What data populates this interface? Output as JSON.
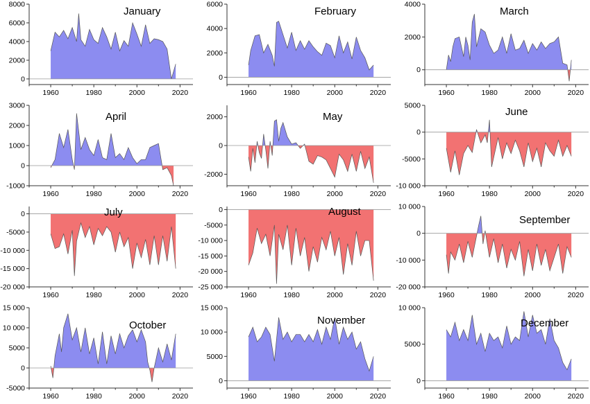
{
  "colors": {
    "positive": "#8c8cf0",
    "negative": "#f27272",
    "outline": "#555555",
    "axis": "#333333",
    "zero_line": "#999999"
  },
  "x_ticks": [
    1960,
    1980,
    2000,
    2020
  ],
  "chart_data": [
    {
      "type": "area",
      "title": "January",
      "xlim": [
        1950,
        2026
      ],
      "ylim": [
        -600,
        8000
      ],
      "yticks": [
        0,
        2000,
        4000,
        6000,
        8000
      ],
      "ytick_labels": [
        "0",
        "2000",
        "4000",
        "6000",
        "8000"
      ],
      "x": [
        1960,
        1962,
        1964,
        1966,
        1968,
        1970,
        1972,
        1973,
        1974,
        1976,
        1978,
        1980,
        1982,
        1984,
        1986,
        1988,
        1990,
        1992,
        1994,
        1996,
        1998,
        2000,
        2002,
        2004,
        2006,
        2008,
        2010,
        2012,
        2014,
        2016,
        2017,
        2018
      ],
      "y": [
        3000,
        5000,
        4500,
        5200,
        4300,
        5500,
        4000,
        7000,
        4200,
        3500,
        5300,
        4200,
        3800,
        5500,
        4500,
        3200,
        5000,
        3000,
        4100,
        3500,
        6000,
        4800,
        3500,
        5800,
        3800,
        4300,
        4200,
        4000,
        3200,
        0,
        800,
        1600
      ]
    },
    {
      "type": "area",
      "title": "February",
      "xlim": [
        1950,
        2026
      ],
      "ylim": [
        -600,
        6000
      ],
      "yticks": [
        0,
        2000,
        4000,
        6000
      ],
      "ytick_labels": [
        "0",
        "2000",
        "4000",
        "6000"
      ],
      "x": [
        1960,
        1961,
        1963,
        1965,
        1967,
        1969,
        1971,
        1972,
        1973,
        1974,
        1976,
        1978,
        1980,
        1982,
        1984,
        1986,
        1988,
        1990,
        1992,
        1994,
        1996,
        1998,
        2000,
        2002,
        2004,
        2006,
        2008,
        2010,
        2012,
        2014,
        2016,
        2018
      ],
      "y": [
        1000,
        2200,
        3400,
        3500,
        2000,
        2700,
        1800,
        900,
        4500,
        4600,
        3500,
        2400,
        3700,
        2200,
        3000,
        2300,
        3000,
        2500,
        2100,
        1800,
        2800,
        2600,
        1600,
        3400,
        2000,
        2900,
        1500,
        3300,
        2200,
        1600,
        600,
        1000
      ]
    },
    {
      "type": "area",
      "title": "March",
      "xlim": [
        1950,
        2026
      ],
      "ylim": [
        -900,
        4000
      ],
      "yticks": [
        0,
        2000,
        4000
      ],
      "ytick_labels": [
        "0",
        "2000",
        "4000"
      ],
      "x": [
        1960,
        1961,
        1962,
        1963,
        1964,
        1966,
        1968,
        1969,
        1970,
        1971,
        1972,
        1973,
        1974,
        1976,
        1978,
        1980,
        1982,
        1984,
        1986,
        1988,
        1990,
        1992,
        1994,
        1996,
        1998,
        2000,
        2002,
        2004,
        2006,
        2008,
        2010,
        2012,
        2014,
        2016,
        2017,
        2018
      ],
      "y": [
        0,
        900,
        500,
        1400,
        1900,
        2000,
        800,
        2000,
        1500,
        600,
        2900,
        3400,
        1400,
        2500,
        2300,
        1500,
        1000,
        1200,
        2000,
        1000,
        2200,
        1200,
        1300,
        1800,
        1000,
        1600,
        1200,
        1700,
        1300,
        1600,
        1700,
        2000,
        400,
        300,
        -700,
        600
      ]
    },
    {
      "type": "area",
      "title": "April",
      "xlim": [
        1950,
        2026
      ],
      "ylim": [
        -1000,
        3000
      ],
      "yticks": [
        -1000,
        0,
        1000,
        2000,
        3000
      ],
      "ytick_labels": [
        "-1000",
        "0",
        "1000",
        "2000",
        "3000"
      ],
      "x": [
        1960,
        1962,
        1964,
        1966,
        1968,
        1970,
        1971,
        1972,
        1974,
        1976,
        1978,
        1980,
        1982,
        1984,
        1986,
        1988,
        1990,
        1992,
        1994,
        1996,
        1998,
        2000,
        2002,
        2004,
        2006,
        2008,
        2010,
        2012,
        2014,
        2016,
        2017
      ],
      "y": [
        -100,
        300,
        1600,
        900,
        1800,
        300,
        -200,
        2600,
        800,
        1400,
        800,
        500,
        1300,
        400,
        300,
        1600,
        400,
        600,
        300,
        900,
        400,
        100,
        300,
        300,
        900,
        1000,
        1100,
        -200,
        -100,
        -500,
        -1000
      ]
    },
    {
      "type": "area",
      "title": "May",
      "xlim": [
        1950,
        2026
      ],
      "ylim": [
        -2800,
        2800
      ],
      "yticks": [
        -2000,
        0,
        2000
      ],
      "ytick_labels": [
        "-2000",
        "0",
        "2000"
      ],
      "x": [
        1960,
        1961,
        1962,
        1963,
        1964,
        1965,
        1966,
        1967,
        1968,
        1969,
        1970,
        1971,
        1972,
        1973,
        1974,
        1975,
        1976,
        1978,
        1980,
        1982,
        1984,
        1986,
        1988,
        1990,
        1992,
        1994,
        1996,
        1998,
        2000,
        2002,
        2004,
        2006,
        2008,
        2010,
        2012,
        2014,
        2016,
        2018
      ],
      "y": [
        -800,
        -1800,
        -200,
        -1200,
        300,
        -500,
        -900,
        800,
        -300,
        -1600,
        300,
        -700,
        1700,
        1800,
        300,
        1200,
        1600,
        600,
        100,
        200,
        -200,
        100,
        -1100,
        -1300,
        -700,
        -800,
        -1000,
        -1600,
        -2200,
        -600,
        -1000,
        -1800,
        -600,
        -1800,
        -400,
        -1600,
        -800,
        -2600
      ]
    },
    {
      "type": "area",
      "title": "June",
      "xlim": [
        1950,
        2026
      ],
      "ylim": [
        -10000,
        5000
      ],
      "yticks": [
        -10000,
        -5000,
        0,
        5000
      ],
      "ytick_labels": [
        "-10 000",
        "-5000",
        "0",
        "5000"
      ],
      "x": [
        1960,
        1962,
        1964,
        1966,
        1968,
        1970,
        1972,
        1974,
        1976,
        1978,
        1979,
        1980,
        1981,
        1984,
        1986,
        1988,
        1990,
        1992,
        1994,
        1996,
        1998,
        2000,
        2002,
        2004,
        2006,
        2008,
        2010,
        2012,
        2014,
        2016,
        2018
      ],
      "y": [
        -3000,
        -7500,
        -3500,
        -8000,
        -4000,
        -2500,
        -3800,
        500,
        -2000,
        -500,
        -2000,
        2300,
        -6500,
        -1000,
        -5000,
        -2000,
        -4000,
        -1500,
        -3500,
        -6500,
        -2000,
        -5500,
        -3000,
        -6500,
        -2000,
        -3500,
        -4500,
        -1500,
        -4500,
        -2500,
        -4500
      ]
    },
    {
      "type": "area",
      "title": "July",
      "xlim": [
        1950,
        2026
      ],
      "ylim": [
        -20000,
        2000
      ],
      "yticks": [
        -20000,
        -15000,
        -10000,
        -5000,
        0
      ],
      "ytick_labels": [
        "-20 000",
        "-15 000",
        "-10 000",
        "-5000",
        "0"
      ],
      "x": [
        1960,
        1962,
        1964,
        1966,
        1968,
        1970,
        1971,
        1972,
        1974,
        1976,
        1978,
        1980,
        1982,
        1984,
        1986,
        1988,
        1990,
        1992,
        1994,
        1996,
        1998,
        2000,
        2002,
        2004,
        2006,
        2008,
        2010,
        2012,
        2014,
        2016,
        2018
      ],
      "y": [
        -5500,
        -9500,
        -9000,
        -5500,
        -11000,
        -4500,
        -17000,
        -7500,
        -2500,
        -6500,
        -3500,
        -8500,
        -4000,
        -6000,
        -3500,
        -5000,
        -10500,
        -5000,
        -9000,
        -6500,
        -15000,
        -8000,
        -12000,
        -7000,
        -14000,
        -6000,
        -14000,
        -6000,
        -13000,
        -3500,
        -15000
      ]
    },
    {
      "type": "area",
      "title": "August",
      "xlim": [
        1950,
        2026
      ],
      "ylim": [
        -25000,
        1000
      ],
      "yticks": [
        -25000,
        -20000,
        -15000,
        -10000,
        -5000,
        0
      ],
      "ytick_labels": [
        "-25 000",
        "-20 000",
        "-15 000",
        "-10 000",
        "-5000",
        "0"
      ],
      "x": [
        1960,
        1962,
        1964,
        1966,
        1968,
        1970,
        1972,
        1973,
        1974,
        1976,
        1978,
        1980,
        1982,
        1984,
        1986,
        1988,
        1990,
        1992,
        1994,
        1996,
        1998,
        2000,
        2002,
        2004,
        2006,
        2008,
        2010,
        2012,
        2014,
        2016,
        2018
      ],
      "y": [
        -18000,
        -14000,
        -6000,
        -11000,
        -8000,
        -15000,
        -5000,
        -24000,
        -8000,
        -13000,
        -5000,
        -18000,
        -6000,
        -15000,
        -9000,
        -20000,
        -12000,
        -17000,
        -9000,
        -13000,
        -7000,
        -15000,
        -9000,
        -21000,
        -11000,
        -18000,
        -7000,
        -15000,
        -10000,
        -10000,
        -23000
      ]
    },
    {
      "type": "area",
      "title": "September",
      "xlim": [
        1950,
        2026
      ],
      "ylim": [
        -20000,
        10000
      ],
      "yticks": [
        -20000,
        -10000,
        0,
        10000
      ],
      "ytick_labels": [
        "-20 000",
        "-10 000",
        "0",
        "10 000"
      ],
      "x": [
        1960,
        1961,
        1962,
        1964,
        1966,
        1968,
        1970,
        1972,
        1974,
        1975,
        1976,
        1977,
        1978,
        1980,
        1982,
        1984,
        1986,
        1988,
        1990,
        1992,
        1994,
        1996,
        1998,
        2000,
        2002,
        2004,
        2006,
        2008,
        2010,
        2012,
        2014,
        2016,
        2018
      ],
      "y": [
        -8000,
        -15000,
        -7000,
        -10000,
        -4000,
        -11000,
        -3000,
        -9000,
        -1000,
        3000,
        6500,
        -4000,
        1000,
        -9000,
        -2000,
        -11000,
        -4000,
        -13000,
        -6000,
        -10000,
        -3000,
        -16000,
        -6000,
        -14000,
        -4000,
        -12000,
        -6000,
        -14000,
        -9000,
        -4000,
        -15000,
        -5000,
        -9000
      ]
    },
    {
      "type": "area",
      "title": "October",
      "xlim": [
        1950,
        2026
      ],
      "ylim": [
        -5000,
        15000
      ],
      "yticks": [
        -5000,
        0,
        5000,
        10000,
        15000
      ],
      "ytick_labels": [
        "-5000",
        "0",
        "5000",
        "10 000",
        "15 000"
      ],
      "x": [
        1960,
        1961,
        1962,
        1964,
        1965,
        1966,
        1968,
        1970,
        1972,
        1974,
        1976,
        1978,
        1980,
        1982,
        1984,
        1986,
        1988,
        1990,
        1992,
        1994,
        1996,
        1998,
        2000,
        2002,
        2004,
        2005,
        2006,
        2007,
        2008,
        2010,
        2012,
        2014,
        2016,
        2018
      ],
      "y": [
        500,
        -2500,
        3000,
        8500,
        4000,
        10000,
        13500,
        7000,
        10000,
        4000,
        10000,
        3500,
        7500,
        1000,
        9000,
        1000,
        8000,
        3500,
        8500,
        5000,
        8000,
        9500,
        6500,
        9500,
        6500,
        1500,
        -500,
        -3500,
        0,
        5000,
        1500,
        6000,
        2000,
        8500
      ]
    },
    {
      "type": "area",
      "title": "November",
      "xlim": [
        1950,
        2026
      ],
      "ylim": [
        -1500,
        15000
      ],
      "yticks": [
        0,
        5000,
        10000,
        15000
      ],
      "ytick_labels": [
        "0",
        "5000",
        "10 000",
        "15 000"
      ],
      "x": [
        1960,
        1962,
        1964,
        1966,
        1968,
        1970,
        1972,
        1974,
        1976,
        1978,
        1980,
        1982,
        1984,
        1986,
        1988,
        1990,
        1992,
        1994,
        1996,
        1998,
        2000,
        2002,
        2004,
        2006,
        2008,
        2010,
        2012,
        2014,
        2016,
        2018
      ],
      "y": [
        9000,
        11000,
        8000,
        9000,
        11000,
        9500,
        4000,
        13000,
        8500,
        10000,
        8000,
        9500,
        9500,
        8000,
        9500,
        8000,
        10500,
        7500,
        11000,
        8500,
        13000,
        7500,
        11000,
        8500,
        10000,
        6500,
        8000,
        4500,
        2000,
        5000
      ]
    },
    {
      "type": "area",
      "title": "December",
      "xlim": [
        1950,
        2026
      ],
      "ylim": [
        -1000,
        10000
      ],
      "yticks": [
        0,
        5000,
        10000
      ],
      "ytick_labels": [
        "0",
        "5000",
        "10 000"
      ],
      "x": [
        1960,
        1962,
        1964,
        1966,
        1968,
        1970,
        1972,
        1974,
        1976,
        1978,
        1980,
        1982,
        1984,
        1986,
        1988,
        1990,
        1992,
        1994,
        1996,
        1998,
        2000,
        2002,
        2004,
        2006,
        2008,
        2010,
        2012,
        2014,
        2016,
        2018
      ],
      "y": [
        7000,
        6000,
        8000,
        5500,
        7000,
        5500,
        9000,
        5000,
        6500,
        4000,
        6500,
        5500,
        6000,
        4500,
        7500,
        5000,
        6000,
        5500,
        9500,
        6000,
        9000,
        6500,
        7000,
        5000,
        8500,
        5500,
        4500,
        2500,
        1500,
        3000
      ]
    }
  ]
}
